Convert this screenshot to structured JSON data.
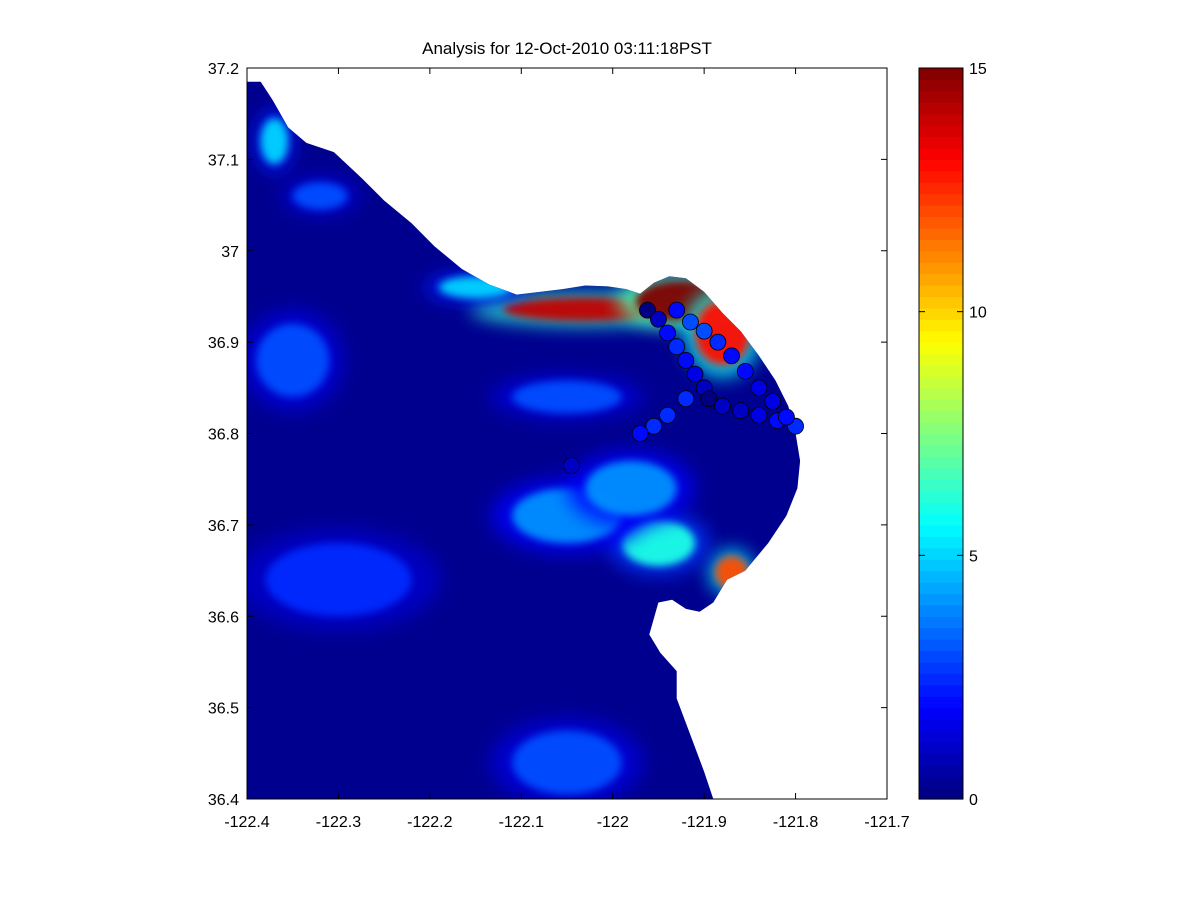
{
  "chart_data": {
    "type": "heatmap",
    "title": "Analysis for 12-Oct-2010 03:11:18PST",
    "xlabel": "",
    "ylabel": "",
    "xlim": [
      -122.4,
      -121.7
    ],
    "ylim": [
      36.4,
      37.2
    ],
    "x_ticks": [
      -122.4,
      -122.3,
      -122.2,
      -122.1,
      -122.0,
      -121.9,
      -121.8,
      -121.7
    ],
    "x_tick_labels": [
      "-122.4",
      "-122.3",
      "-122.2",
      "-122.1",
      "-122",
      "-121.9",
      "-121.8",
      "-121.7"
    ],
    "y_ticks": [
      36.4,
      36.5,
      36.6,
      36.7,
      36.8,
      36.9,
      37.0,
      37.1,
      37.2
    ],
    "y_tick_labels": [
      "36.4",
      "36.5",
      "36.6",
      "36.7",
      "36.8",
      "36.9",
      "37",
      "37.1",
      "37.2"
    ],
    "colorbar": {
      "colormap": "jet",
      "range": [
        0,
        15
      ],
      "ticks": [
        0,
        5,
        10,
        15
      ],
      "tick_labels": [
        "0",
        "5",
        "10",
        "15"
      ]
    },
    "coastline": [
      [
        -122.4,
        37.185
      ],
      [
        -122.385,
        37.185
      ],
      [
        -122.372,
        37.165
      ],
      [
        -122.355,
        37.135
      ],
      [
        -122.335,
        37.118
      ],
      [
        -122.305,
        37.108
      ],
      [
        -122.275,
        37.08
      ],
      [
        -122.25,
        37.055
      ],
      [
        -122.22,
        37.03
      ],
      [
        -122.195,
        37.005
      ],
      [
        -122.165,
        36.98
      ],
      [
        -122.135,
        36.963
      ],
      [
        -122.105,
        36.952
      ],
      [
        -122.08,
        36.955
      ],
      [
        -122.055,
        36.958
      ],
      [
        -122.03,
        36.962
      ],
      [
        -122.005,
        36.961
      ],
      [
        -121.985,
        36.958
      ],
      [
        -121.97,
        36.953
      ],
      [
        -121.955,
        36.965
      ],
      [
        -121.938,
        36.972
      ],
      [
        -121.92,
        36.97
      ],
      [
        -121.9,
        36.955
      ],
      [
        -121.88,
        36.932
      ],
      [
        -121.86,
        36.912
      ],
      [
        -121.84,
        36.885
      ],
      [
        -121.822,
        36.858
      ],
      [
        -121.808,
        36.83
      ],
      [
        -121.8,
        36.8
      ],
      [
        -121.795,
        36.77
      ],
      [
        -121.798,
        36.74
      ],
      [
        -121.81,
        36.71
      ],
      [
        -121.83,
        36.68
      ],
      [
        -121.855,
        36.65
      ],
      [
        -121.875,
        36.64
      ],
      [
        -121.89,
        36.615
      ],
      [
        -121.905,
        36.605
      ],
      [
        -121.92,
        36.608
      ],
      [
        -121.935,
        36.618
      ],
      [
        -121.95,
        36.615
      ],
      [
        -121.96,
        36.58
      ],
      [
        -121.948,
        36.56
      ],
      [
        -121.93,
        36.54
      ],
      [
        -121.93,
        36.51
      ],
      [
        -121.915,
        36.47
      ],
      [
        -121.9,
        36.43
      ],
      [
        -121.89,
        36.4
      ]
    ],
    "chlorophyll_hotspots": [
      {
        "x": -122.03,
        "y": 36.936,
        "rx": 0.09,
        "ry": 0.013,
        "value": 14
      },
      {
        "x": -121.925,
        "y": 36.945,
        "rx": 0.05,
        "ry": 0.022,
        "value": 15
      },
      {
        "x": -121.88,
        "y": 36.91,
        "rx": 0.03,
        "ry": 0.035,
        "value": 13
      },
      {
        "x": -121.87,
        "y": 36.648,
        "rx": 0.018,
        "ry": 0.018,
        "value": 12
      },
      {
        "x": -121.95,
        "y": 36.68,
        "rx": 0.04,
        "ry": 0.025,
        "value": 6
      },
      {
        "x": -122.05,
        "y": 36.71,
        "rx": 0.06,
        "ry": 0.03,
        "value": 4
      },
      {
        "x": -121.98,
        "y": 36.74,
        "rx": 0.05,
        "ry": 0.03,
        "value": 4
      },
      {
        "x": -122.05,
        "y": 36.84,
        "rx": 0.06,
        "ry": 0.018,
        "value": 3
      },
      {
        "x": -122.35,
        "y": 36.88,
        "rx": 0.04,
        "ry": 0.04,
        "value": 3
      },
      {
        "x": -122.37,
        "y": 37.12,
        "rx": 0.015,
        "ry": 0.025,
        "value": 5
      },
      {
        "x": -122.32,
        "y": 37.06,
        "rx": 0.03,
        "ry": 0.015,
        "value": 3
      },
      {
        "x": -122.15,
        "y": 36.96,
        "rx": 0.04,
        "ry": 0.012,
        "value": 5
      },
      {
        "x": -122.05,
        "y": 36.44,
        "rx": 0.06,
        "ry": 0.035,
        "value": 3
      },
      {
        "x": -122.3,
        "y": 36.64,
        "rx": 0.08,
        "ry": 0.04,
        "value": 2.5
      }
    ],
    "vehicle_track": [
      {
        "x": -121.962,
        "y": 36.935,
        "value": 0
      },
      {
        "x": -121.95,
        "y": 36.925,
        "value": 1
      },
      {
        "x": -121.94,
        "y": 36.91,
        "value": 2
      },
      {
        "x": -121.93,
        "y": 36.895,
        "value": 2.5
      },
      {
        "x": -121.92,
        "y": 36.88,
        "value": 2
      },
      {
        "x": -121.91,
        "y": 36.865,
        "value": 1.5
      },
      {
        "x": -121.9,
        "y": 36.85,
        "value": 1
      },
      {
        "x": -121.895,
        "y": 36.838,
        "value": 0
      },
      {
        "x": -121.88,
        "y": 36.83,
        "value": 1
      },
      {
        "x": -121.86,
        "y": 36.825,
        "value": 1
      },
      {
        "x": -121.84,
        "y": 36.82,
        "value": 1.5
      },
      {
        "x": -121.82,
        "y": 36.814,
        "value": 2
      },
      {
        "x": -121.8,
        "y": 36.808,
        "value": 2.5
      },
      {
        "x": -121.81,
        "y": 36.818,
        "value": 2
      },
      {
        "x": -121.825,
        "y": 36.835,
        "value": 1.5
      },
      {
        "x": -121.84,
        "y": 36.85,
        "value": 1.5
      },
      {
        "x": -121.855,
        "y": 36.868,
        "value": 2
      },
      {
        "x": -121.87,
        "y": 36.885,
        "value": 2
      },
      {
        "x": -121.885,
        "y": 36.9,
        "value": 2.5
      },
      {
        "x": -121.9,
        "y": 36.912,
        "value": 3
      },
      {
        "x": -121.915,
        "y": 36.922,
        "value": 3
      },
      {
        "x": -121.93,
        "y": 36.935,
        "value": 2
      },
      {
        "x": -121.92,
        "y": 36.838,
        "value": 2.5
      },
      {
        "x": -121.94,
        "y": 36.82,
        "value": 2.5
      },
      {
        "x": -121.955,
        "y": 36.808,
        "value": 2.5
      },
      {
        "x": -121.97,
        "y": 36.8,
        "value": 2
      },
      {
        "x": -122.045,
        "y": 36.765,
        "value": 1
      }
    ]
  }
}
